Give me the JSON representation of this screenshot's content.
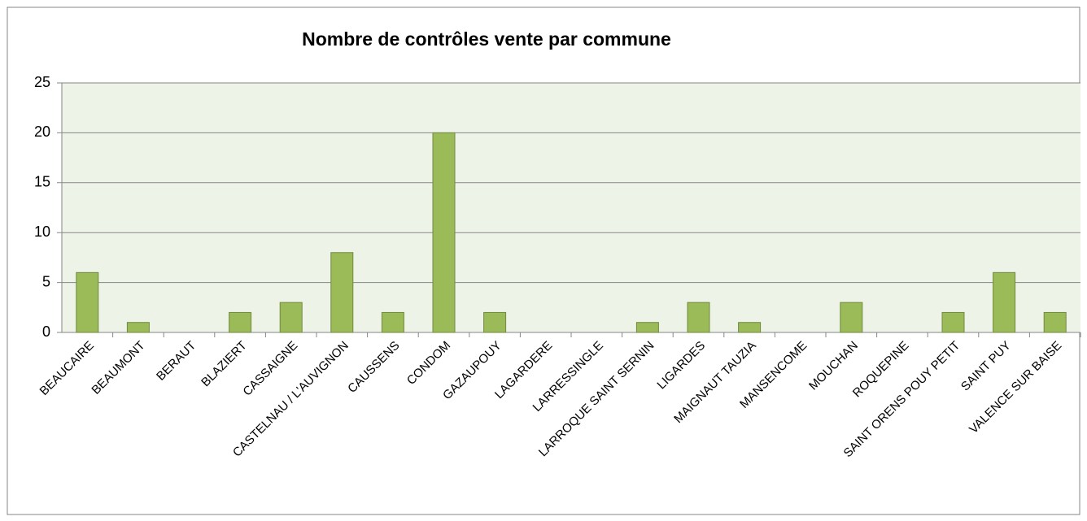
{
  "chart_data": {
    "type": "bar",
    "title": "Nombre de contrôles vente par commune",
    "categories": [
      "BEAUCAIRE",
      "BEAUMONT",
      "BERAUT",
      "BLAZIERT",
      "CASSAIGNE",
      "CASTELNAU / L'AUVIGNON",
      "CAUSSENS",
      "CONDOM",
      "GAZAUPOUY",
      "LAGARDERE",
      "LARRESSINGLE",
      "LARROQUE SAINT SERNIN",
      "LIGARDES",
      "MAIGNAUT TAUZIA",
      "MANSENCOME",
      "MOUCHAN",
      "ROQUEPINE",
      "SAINT ORENS POUY PETIT",
      "SAINT PUY",
      "VALENCE SUR BAISE"
    ],
    "values": [
      6,
      1,
      0,
      2,
      3,
      8,
      2,
      20,
      2,
      0,
      0,
      1,
      3,
      1,
      0,
      3,
      0,
      2,
      6,
      2
    ],
    "color": "#9bbb59",
    "ylim": [
      0,
      25
    ],
    "yticks": [
      0,
      5,
      10,
      15,
      20,
      25
    ],
    "grid": true
  }
}
